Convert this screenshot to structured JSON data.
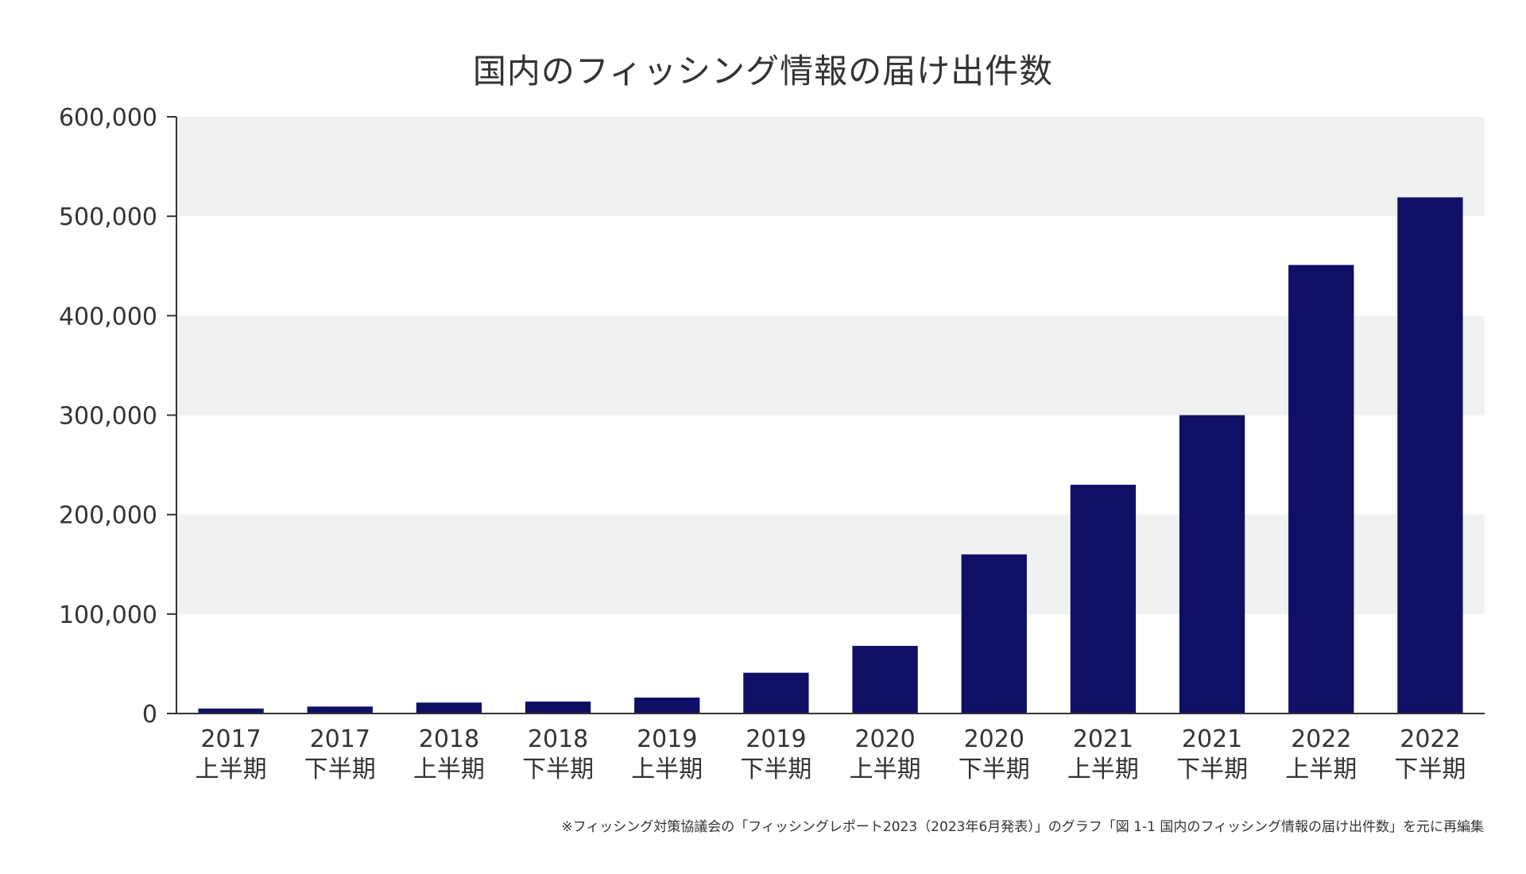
{
  "chart_data": {
    "type": "bar",
    "title": "国内のフィッシング情報の届け出件数",
    "categories": [
      [
        "2017",
        "上半期"
      ],
      [
        "2017",
        "下半期"
      ],
      [
        "2018",
        "上半期"
      ],
      [
        "2018",
        "下半期"
      ],
      [
        "2019",
        "上半期"
      ],
      [
        "2019",
        "下半期"
      ],
      [
        "2020",
        "上半期"
      ],
      [
        "2020",
        "下半期"
      ],
      [
        "2021",
        "上半期"
      ],
      [
        "2021",
        "下半期"
      ],
      [
        "2022",
        "上半期"
      ],
      [
        "2022",
        "下半期"
      ]
    ],
    "values": [
      5000,
      7000,
      11000,
      12000,
      16000,
      41000,
      68000,
      160000,
      230000,
      300000,
      451000,
      519000
    ],
    "ylim": [
      0,
      600000
    ],
    "yticks": [
      0,
      100000,
      200000,
      300000,
      400000,
      500000,
      600000
    ],
    "ytick_labels": [
      "0",
      "100,000",
      "200,000",
      "300,000",
      "400,000",
      "500,000",
      "600,000"
    ],
    "xlabel": "",
    "ylabel": "",
    "grid": "alternating horizontal bands",
    "legend": "none",
    "colors": {
      "bar": "#0f0f66",
      "band": "#f0f1f1",
      "axis": "#333333"
    }
  },
  "footnote": "※フィッシング対策協議会の「フィッシングレポート2023（2023年6月発表）」のグラフ「図 1-1 国内のフィッシング情報の届け出件数」を元に再編集"
}
